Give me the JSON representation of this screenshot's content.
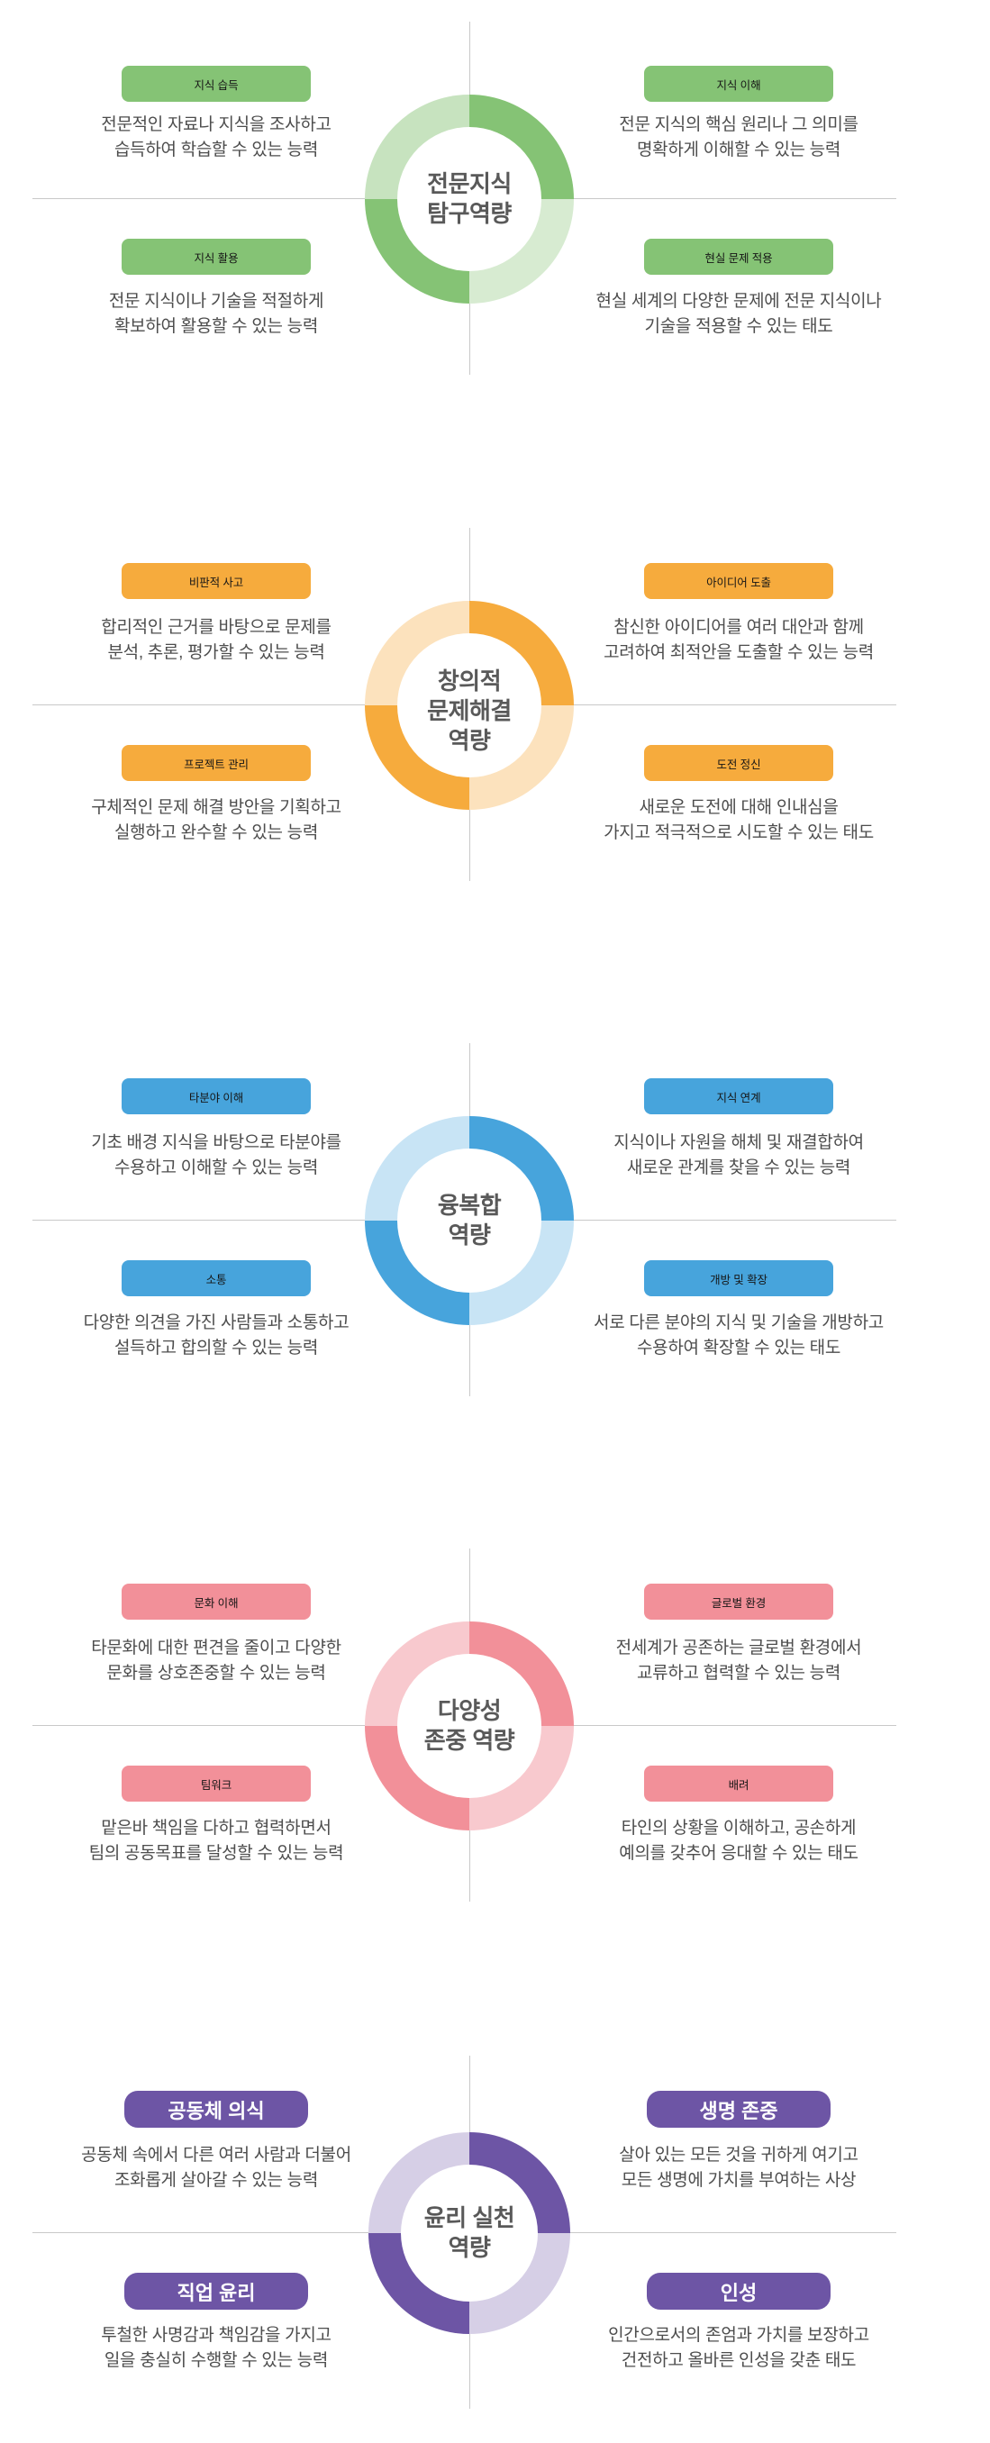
{
  "page": {
    "background": "#ffffff",
    "axis_line_color": "#c9c9c9"
  },
  "sections": [
    {
      "id": "expert-knowledge-exploration",
      "title": "전문지식\n탐구역량",
      "colors": {
        "solid": "#85c375",
        "light_tl": "#c7e3bf",
        "light_br": "#d7ebd1"
      },
      "quadrants": [
        {
          "position": "top-left",
          "label": "지식 습득",
          "description": "전문적인 자료나 지식을 조사하고\n습득하여 학습할 수 있는 능력"
        },
        {
          "position": "top-right",
          "label": "지식 이해",
          "description": "전문 지식의 핵심 원리나 그 의미를\n명확하게 이해할 수 있는 능력"
        },
        {
          "position": "bottom-left",
          "label": "지식 활용",
          "description": "전문 지식이나 기술을 적절하게\n확보하여 활용할 수 있는 능력"
        },
        {
          "position": "bottom-right",
          "label": "현실 문제 적용",
          "description": "현실 세계의 다양한 문제에 전문 지식이나\n기술을 적용할 수 있는 태도"
        }
      ]
    },
    {
      "id": "creative-problem-solving",
      "title": "창의적\n문제해결\n역량",
      "colors": {
        "solid": "#f6ab3d",
        "light_tl": "#fce2bd",
        "light_br": "#fce2bd"
      },
      "quadrants": [
        {
          "position": "top-left",
          "label": "비판적 사고",
          "description": "합리적인 근거를 바탕으로 문제를\n분석, 추론, 평가할 수 있는 능력"
        },
        {
          "position": "top-right",
          "label": "아이디어 도출",
          "description": "참신한 아이디어를 여러 대안과 함께\n고려하여 최적안을 도출할 수 있는 능력"
        },
        {
          "position": "bottom-left",
          "label": "프로젝트 관리",
          "description": "구체적인 문제 해결 방안을 기획하고\n실행하고 완수할 수 있는 능력"
        },
        {
          "position": "bottom-right",
          "label": "도전 정신",
          "description": "새로운 도전에 대해 인내심을\n가지고 적극적으로 시도할 수 있는 태도"
        }
      ]
    },
    {
      "id": "convergence",
      "title": "융복합\n역량",
      "colors": {
        "solid": "#47a4dc",
        "light_tl": "#c8e4f5",
        "light_br": "#c8e4f5"
      },
      "quadrants": [
        {
          "position": "top-left",
          "label": "타분야 이해",
          "description": "기초 배경 지식을 바탕으로 타분야를\n수용하고 이해할 수 있는 능력"
        },
        {
          "position": "top-right",
          "label": "지식 연계",
          "description": "지식이나 자원을 해체 및 재결합하여\n새로운 관계를 찾을 수 있는 능력"
        },
        {
          "position": "bottom-left",
          "label": "소통",
          "description": "다양한 의견을 가진 사람들과 소통하고\n설득하고 합의할 수 있는 능력"
        },
        {
          "position": "bottom-right",
          "label": "개방 및 확장",
          "description": "서로 다른 분야의 지식 및 기술을 개방하고\n수용하여 확장할 수 있는 태도"
        }
      ]
    },
    {
      "id": "diversity-respect",
      "title": "다양성\n존중 역량",
      "colors": {
        "solid": "#f29099",
        "light_tl": "#f8c9ce",
        "light_br": "#f8c9ce"
      },
      "quadrants": [
        {
          "position": "top-left",
          "label": "문화 이해",
          "description": "타문화에 대한 편견을 줄이고 다양한\n문화를 상호존중할 수 있는 능력"
        },
        {
          "position": "top-right",
          "label": "글로벌 환경",
          "description": "전세계가 공존하는 글로벌 환경에서\n교류하고 협력할 수 있는 능력"
        },
        {
          "position": "bottom-left",
          "label": "팀워크",
          "description": "맡은바 책임을 다하고 협력하면서\n팀의 공동목표를 달성할 수 있는 능력"
        },
        {
          "position": "bottom-right",
          "label": "배려",
          "description": "타인의 상황을 이해하고, 공손하게\n예의를 갖추어 응대할 수 있는 태도"
        }
      ]
    },
    {
      "id": "ethics-practice",
      "title": "윤리 실천\n역량",
      "colors": {
        "solid": "#6d55a5",
        "light_tl": "#d6cfe6",
        "light_br": "#d6cfe6"
      },
      "quadrants": [
        {
          "position": "top-left",
          "label": "공동체 의식",
          "description": "공동체 속에서 다른 여러 사람과 더불어\n조화롭게 살아갈 수 있는 능력"
        },
        {
          "position": "top-right",
          "label": "생명 존중",
          "description": "살아 있는 모든 것을 귀하게 여기고\n모든 생명에 가치를 부여하는 사상"
        },
        {
          "position": "bottom-left",
          "label": "직업 윤리",
          "description": "투철한 사명감과 책임감을 가지고\n일을 충실히 수행할 수 있는 능력"
        },
        {
          "position": "bottom-right",
          "label": "인성",
          "description": "인간으로서의 존엄과 가치를 보장하고\n건전하고 올바른 인성을 갖춘 태도"
        }
      ]
    }
  ]
}
